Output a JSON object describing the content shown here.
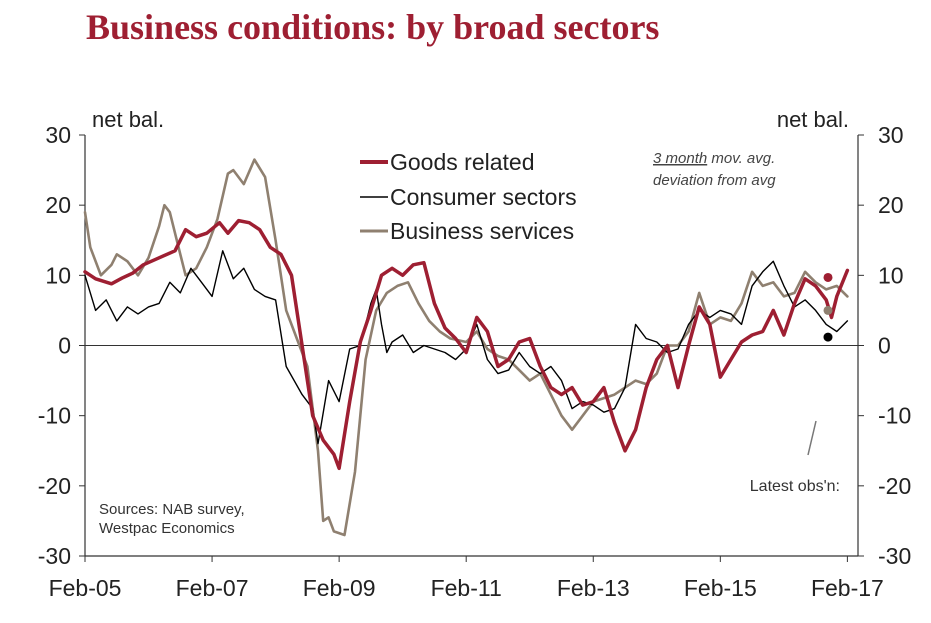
{
  "chart_data": {
    "type": "line",
    "title": "Business conditions: by broad sectors",
    "ylabel_left": "net bal.",
    "ylabel_right": "net bal.",
    "ylim": [
      -30,
      30
    ],
    "yticks": [
      30,
      20,
      10,
      0,
      -10,
      -20,
      -30
    ],
    "yticks_right_labels": [
      "30",
      "20",
      "10",
      "0",
      "-10",
      "-20",
      "-30"
    ],
    "yticks_left_labels": [
      "30",
      "20",
      "10",
      "0",
      "-10",
      "-20",
      "-30"
    ],
    "xlim": [
      2005.083,
      2017.25
    ],
    "xticks": [
      {
        "x": 2005.083,
        "label": "Feb-05"
      },
      {
        "x": 2007.083,
        "label": "Feb-07"
      },
      {
        "x": 2009.083,
        "label": "Feb-09"
      },
      {
        "x": 2011.083,
        "label": "Feb-11"
      },
      {
        "x": 2013.083,
        "label": "Feb-13"
      },
      {
        "x": 2015.083,
        "label": "Feb-15"
      },
      {
        "x": 2017.083,
        "label": "Feb-17"
      }
    ],
    "note_line1_underlined": "3 month",
    "note_line1_rest": " mov. avg.",
    "note_line2": "deviation from avg",
    "sources_line1": "Sources: NAB survey,",
    "sources_line2": "Westpac Economics",
    "latest_label": "Latest obs'n:",
    "series": [
      {
        "name": "Goods related",
        "color": "#9e1f32",
        "points": [
          [
            2005.083,
            10.5
          ],
          [
            2005.25,
            9.5
          ],
          [
            2005.5,
            8.8
          ],
          [
            2005.667,
            9.6
          ],
          [
            2005.833,
            10.3
          ],
          [
            2006.0,
            11.5
          ],
          [
            2006.25,
            12.5
          ],
          [
            2006.5,
            13.5
          ],
          [
            2006.667,
            16.5
          ],
          [
            2006.833,
            15.5
          ],
          [
            2007.0,
            16.0
          ],
          [
            2007.2,
            17.5
          ],
          [
            2007.333,
            16.0
          ],
          [
            2007.5,
            17.8
          ],
          [
            2007.667,
            17.5
          ],
          [
            2007.833,
            16.5
          ],
          [
            2008.0,
            14.0
          ],
          [
            2008.167,
            13.0
          ],
          [
            2008.333,
            10.0
          ],
          [
            2008.5,
            0.0
          ],
          [
            2008.667,
            -10.0
          ],
          [
            2008.833,
            -13.5
          ],
          [
            2009.0,
            -15.5
          ],
          [
            2009.083,
            -17.5
          ],
          [
            2009.25,
            -8.0
          ],
          [
            2009.417,
            0.5
          ],
          [
            2009.583,
            5.0
          ],
          [
            2009.75,
            10.0
          ],
          [
            2009.917,
            11.0
          ],
          [
            2010.083,
            10.0
          ],
          [
            2010.25,
            11.5
          ],
          [
            2010.417,
            11.8
          ],
          [
            2010.583,
            6.0
          ],
          [
            2010.75,
            2.5
          ],
          [
            2010.917,
            1.0
          ],
          [
            2011.083,
            -1.0
          ],
          [
            2011.25,
            4.0
          ],
          [
            2011.417,
            2.0
          ],
          [
            2011.583,
            -3.0
          ],
          [
            2011.75,
            -2.0
          ],
          [
            2011.917,
            0.5
          ],
          [
            2012.083,
            1.0
          ],
          [
            2012.25,
            -3.0
          ],
          [
            2012.417,
            -6.0
          ],
          [
            2012.583,
            -7.0
          ],
          [
            2012.75,
            -6.0
          ],
          [
            2012.917,
            -8.5
          ],
          [
            2013.083,
            -8.0
          ],
          [
            2013.25,
            -6.0
          ],
          [
            2013.417,
            -11.0
          ],
          [
            2013.583,
            -15.0
          ],
          [
            2013.75,
            -12.0
          ],
          [
            2013.917,
            -6.0
          ],
          [
            2014.083,
            -2.0
          ],
          [
            2014.25,
            0.0
          ],
          [
            2014.417,
            -6.0
          ],
          [
            2014.583,
            0.0
          ],
          [
            2014.75,
            5.5
          ],
          [
            2014.917,
            3.0
          ],
          [
            2015.083,
            -4.5
          ],
          [
            2015.25,
            -2.0
          ],
          [
            2015.417,
            0.5
          ],
          [
            2015.583,
            1.5
          ],
          [
            2015.75,
            2.0
          ],
          [
            2015.917,
            5.0
          ],
          [
            2016.083,
            1.5
          ],
          [
            2016.25,
            6.0
          ],
          [
            2016.417,
            9.5
          ],
          [
            2016.583,
            8.5
          ],
          [
            2016.75,
            6.5
          ],
          [
            2016.833,
            4.0
          ],
          [
            2016.917,
            7.0
          ],
          [
            2017.083,
            10.7
          ]
        ]
      },
      {
        "name": "Consumer sectors",
        "color": "#000000",
        "points": [
          [
            2005.083,
            10.0
          ],
          [
            2005.25,
            5.0
          ],
          [
            2005.417,
            6.5
          ],
          [
            2005.5,
            5.0
          ],
          [
            2005.583,
            3.5
          ],
          [
            2005.75,
            5.5
          ],
          [
            2005.917,
            4.5
          ],
          [
            2006.083,
            5.5
          ],
          [
            2006.25,
            6.0
          ],
          [
            2006.417,
            9.0
          ],
          [
            2006.583,
            7.5
          ],
          [
            2006.75,
            11.0
          ],
          [
            2006.917,
            9.0
          ],
          [
            2007.083,
            7.0
          ],
          [
            2007.25,
            13.5
          ],
          [
            2007.417,
            9.5
          ],
          [
            2007.583,
            11.0
          ],
          [
            2007.75,
            8.0
          ],
          [
            2007.917,
            7.0
          ],
          [
            2008.083,
            6.5
          ],
          [
            2008.25,
            -3.0
          ],
          [
            2008.5,
            -7.0
          ],
          [
            2008.667,
            -9.0
          ],
          [
            2008.75,
            -14.0
          ],
          [
            2008.917,
            -5.0
          ],
          [
            2009.083,
            -8.0
          ],
          [
            2009.25,
            -0.5
          ],
          [
            2009.417,
            0.0
          ],
          [
            2009.583,
            6.0
          ],
          [
            2009.667,
            8.0
          ],
          [
            2009.75,
            3.0
          ],
          [
            2009.833,
            -1.0
          ],
          [
            2009.917,
            0.5
          ],
          [
            2010.083,
            1.5
          ],
          [
            2010.25,
            -1.0
          ],
          [
            2010.417,
            0.0
          ],
          [
            2010.583,
            -0.5
          ],
          [
            2010.75,
            -1.0
          ],
          [
            2010.917,
            -2.0
          ],
          [
            2011.083,
            -0.5
          ],
          [
            2011.25,
            3.0
          ],
          [
            2011.417,
            -2.0
          ],
          [
            2011.583,
            -4.0
          ],
          [
            2011.75,
            -3.5
          ],
          [
            2011.917,
            -1.0
          ],
          [
            2012.083,
            -3.0
          ],
          [
            2012.25,
            -4.0
          ],
          [
            2012.417,
            -3.0
          ],
          [
            2012.583,
            -5.0
          ],
          [
            2012.75,
            -9.0
          ],
          [
            2012.917,
            -8.0
          ],
          [
            2013.083,
            -8.5
          ],
          [
            2013.25,
            -9.5
          ],
          [
            2013.417,
            -9.0
          ],
          [
            2013.583,
            -6.0
          ],
          [
            2013.75,
            3.0
          ],
          [
            2013.917,
            1.0
          ],
          [
            2014.083,
            0.5
          ],
          [
            2014.25,
            -1.0
          ],
          [
            2014.417,
            -0.5
          ],
          [
            2014.583,
            3.0
          ],
          [
            2014.75,
            5.0
          ],
          [
            2014.917,
            4.0
          ],
          [
            2015.083,
            5.0
          ],
          [
            2015.25,
            4.5
          ],
          [
            2015.417,
            3.0
          ],
          [
            2015.583,
            8.5
          ],
          [
            2015.75,
            10.5
          ],
          [
            2015.917,
            12.0
          ],
          [
            2016.083,
            8.5
          ],
          [
            2016.25,
            5.5
          ],
          [
            2016.417,
            6.5
          ],
          [
            2016.583,
            5.0
          ],
          [
            2016.75,
            3.0
          ],
          [
            2016.917,
            2.0
          ],
          [
            2017.083,
            3.5
          ]
        ]
      },
      {
        "name": "Business services",
        "color": "#8f8070",
        "points": [
          [
            2005.083,
            19.0
          ],
          [
            2005.167,
            14.0
          ],
          [
            2005.333,
            10.0
          ],
          [
            2005.5,
            11.5
          ],
          [
            2005.583,
            13.0
          ],
          [
            2005.75,
            12.0
          ],
          [
            2005.917,
            10.0
          ],
          [
            2006.083,
            12.5
          ],
          [
            2006.25,
            17.0
          ],
          [
            2006.333,
            20.0
          ],
          [
            2006.417,
            19.0
          ],
          [
            2006.583,
            13.0
          ],
          [
            2006.667,
            10.0
          ],
          [
            2006.833,
            11.0
          ],
          [
            2007.0,
            14.0
          ],
          [
            2007.167,
            18.0
          ],
          [
            2007.333,
            24.5
          ],
          [
            2007.417,
            25.0
          ],
          [
            2007.583,
            23.0
          ],
          [
            2007.75,
            26.5
          ],
          [
            2007.917,
            24.0
          ],
          [
            2008.083,
            15.0
          ],
          [
            2008.25,
            5.0
          ],
          [
            2008.417,
            1.0
          ],
          [
            2008.583,
            -3.0
          ],
          [
            2008.75,
            -15.0
          ],
          [
            2008.833,
            -25.0
          ],
          [
            2008.917,
            -24.5
          ],
          [
            2009.0,
            -26.5
          ],
          [
            2009.167,
            -27.0
          ],
          [
            2009.333,
            -18.0
          ],
          [
            2009.5,
            -2.0
          ],
          [
            2009.667,
            5.0
          ],
          [
            2009.833,
            7.5
          ],
          [
            2010.0,
            8.5
          ],
          [
            2010.167,
            9.0
          ],
          [
            2010.333,
            6.0
          ],
          [
            2010.5,
            3.5
          ],
          [
            2010.667,
            2.0
          ],
          [
            2010.833,
            1.0
          ],
          [
            2011.083,
            0.5
          ],
          [
            2011.25,
            2.0
          ],
          [
            2011.417,
            -0.5
          ],
          [
            2011.583,
            -1.5
          ],
          [
            2011.75,
            -2.0
          ],
          [
            2011.917,
            -3.5
          ],
          [
            2012.083,
            -5.0
          ],
          [
            2012.25,
            -4.0
          ],
          [
            2012.417,
            -7.0
          ],
          [
            2012.583,
            -10.0
          ],
          [
            2012.75,
            -12.0
          ],
          [
            2012.917,
            -10.0
          ],
          [
            2013.083,
            -8.0
          ],
          [
            2013.25,
            -7.5
          ],
          [
            2013.417,
            -7.0
          ],
          [
            2013.583,
            -6.0
          ],
          [
            2013.75,
            -5.0
          ],
          [
            2013.917,
            -5.5
          ],
          [
            2014.083,
            -4.0
          ],
          [
            2014.25,
            0.0
          ],
          [
            2014.417,
            0.0
          ],
          [
            2014.583,
            2.0
          ],
          [
            2014.75,
            7.5
          ],
          [
            2014.917,
            3.0
          ],
          [
            2015.083,
            4.0
          ],
          [
            2015.25,
            3.5
          ],
          [
            2015.417,
            6.0
          ],
          [
            2015.583,
            10.5
          ],
          [
            2015.75,
            8.5
          ],
          [
            2015.917,
            9.0
          ],
          [
            2016.083,
            7.0
          ],
          [
            2016.25,
            7.5
          ],
          [
            2016.417,
            10.5
          ],
          [
            2016.583,
            9.0
          ],
          [
            2016.75,
            8.0
          ],
          [
            2016.917,
            8.5
          ],
          [
            2017.083,
            7.0
          ]
        ]
      }
    ],
    "latest_markers": [
      {
        "series": "Goods related",
        "value": 9.7,
        "color": "#9e1f32"
      },
      {
        "series": "Business services",
        "value": 5.0,
        "color": "#8f8070"
      },
      {
        "series": "Consumer sectors",
        "value": 1.2,
        "color": "#000000"
      }
    ]
  }
}
